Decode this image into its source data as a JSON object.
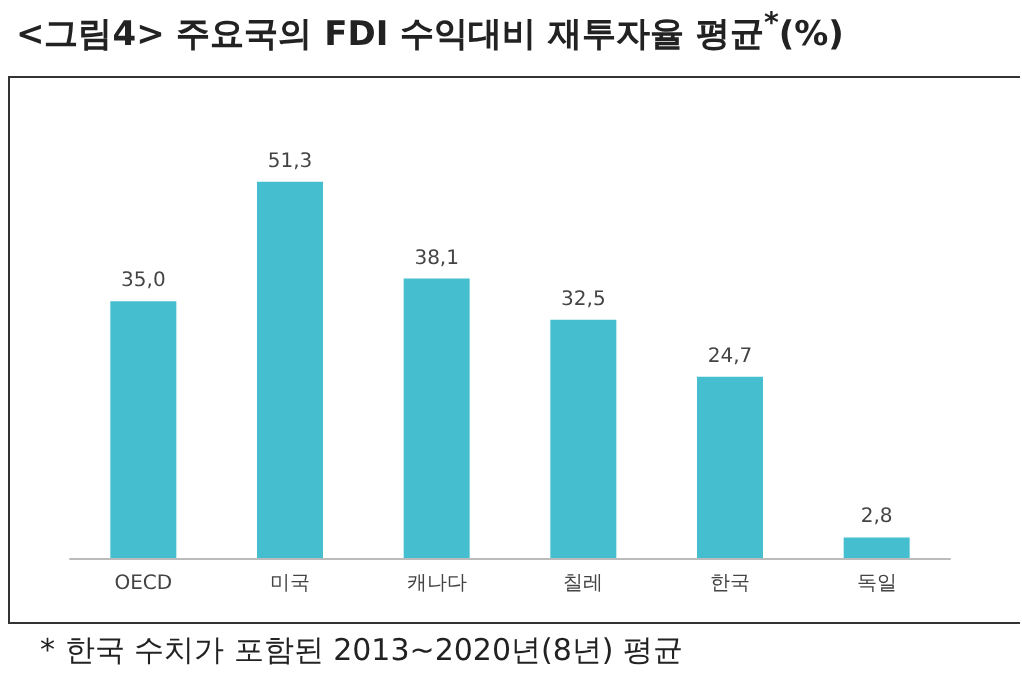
{
  "chart_data": {
    "type": "bar",
    "title": "<그림4> 주요국의 FDI 수익대비 재투자율 평균$^{*}$(%)",
    "categories": [
      "OECD",
      "미국",
      "캐나다",
      "칠레",
      "한국",
      "독일"
    ],
    "values": [
      35.0,
      51.3,
      38.1,
      32.5,
      24.7,
      2.8
    ],
    "value_labels": [
      "35,0",
      "51,3",
      "38,1",
      "32,5",
      "24,7",
      "2,8"
    ],
    "color": "#45bfcf",
    "tick_labels": "x",
    "grid": false,
    "annotations": [
      "* 한국 수치가 포함된 2013~2020년(8년) 평균"
    ]
  }
}
